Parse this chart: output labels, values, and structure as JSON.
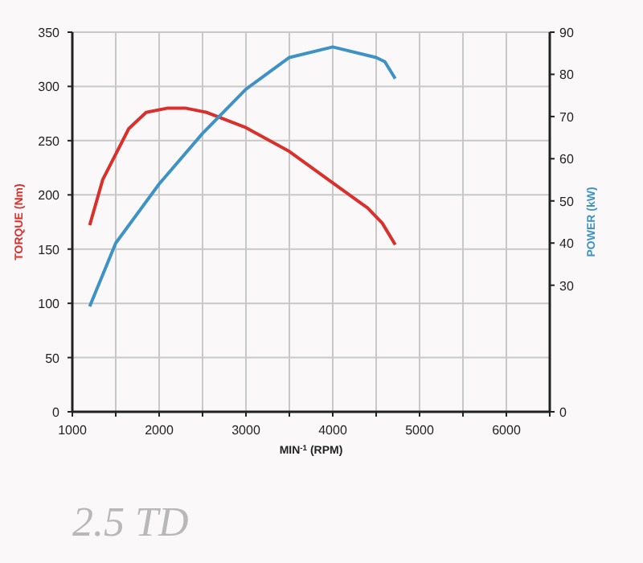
{
  "chart_data": {
    "type": "line",
    "xlabel": "MIN$^{-1}$ (RPM)",
    "ylabel": "TORQUE (Nm)",
    "y2label": "POWER (kW)",
    "annotations": [
      "2.5 TD"
    ],
    "grid": true,
    "marker": "none",
    "line_style": "solid",
    "xlim": [
      1000,
      6500
    ],
    "xticks": [
      1000,
      {
        "value": 1500,
        "label": null
      },
      2000,
      {
        "value": 2500,
        "label": null
      },
      3000,
      {
        "value": 3500,
        "label": null
      },
      4000,
      {
        "value": 4500,
        "label": null
      },
      5000,
      {
        "value": 5500,
        "label": null
      },
      6000,
      {
        "value": 6500,
        "label": null
      }
    ],
    "ylim": [
      0,
      350
    ],
    "yticks": [
      0,
      50,
      100,
      150,
      200,
      250,
      300,
      350
    ],
    "y2lim": [
      0,
      90
    ],
    "y2ticks": [
      0,
      30,
      40,
      50,
      60,
      70,
      80,
      90
    ],
    "series": [
      {
        "color": "#d9302c",
        "x": [
          1200,
          1350,
          1650,
          1850,
          2100,
          2300,
          2550,
          3000,
          3500,
          4000,
          4400,
          4570,
          4720
        ],
        "values": [
          172,
          214,
          261,
          276,
          280,
          280,
          276,
          262,
          240,
          211,
          188,
          174,
          154
        ]
      },
      {
        "color": "#3f93c4",
        "axis": "y2",
        "x": [
          1200,
          1500,
          2000,
          2500,
          3000,
          3500,
          4000,
          4500,
          4600,
          4720
        ],
        "values": [
          25,
          40,
          54,
          66,
          76.5,
          84,
          86.5,
          84,
          83,
          79
        ]
      }
    ]
  }
}
